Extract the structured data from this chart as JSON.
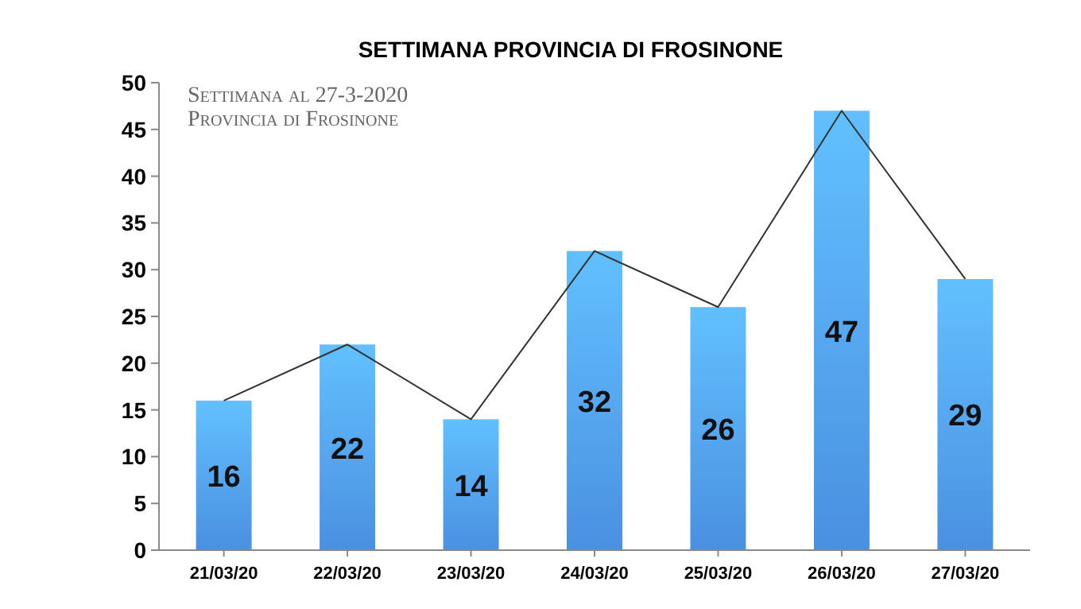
{
  "chart_data": {
    "type": "bar",
    "title": "SETTIMANA PROVINCIA DI FROSINONE",
    "annotations": [
      "Settimana al 27-3-2020",
      "Provincia di Frosinone"
    ],
    "categories": [
      "21/03/20",
      "22/03/20",
      "23/03/20",
      "24/03/20",
      "25/03/20",
      "26/03/20",
      "27/03/20"
    ],
    "series": [
      {
        "color": "#4a90e0",
        "values": [
          16,
          22,
          14,
          32,
          26,
          47,
          29
        ],
        "value_labels": [
          "16",
          "22",
          "14",
          "32",
          "26",
          "47",
          "29"
        ]
      },
      {
        "type": "line",
        "color": "#333333",
        "values": [
          16,
          22,
          14,
          32,
          26,
          47,
          29
        ]
      }
    ],
    "ylim": [
      0,
      50
    ],
    "yticks": [
      0,
      5,
      10,
      15,
      20,
      25,
      30,
      35,
      40,
      45,
      50
    ],
    "grid": false,
    "marker": "none",
    "line_style": "solid"
  }
}
